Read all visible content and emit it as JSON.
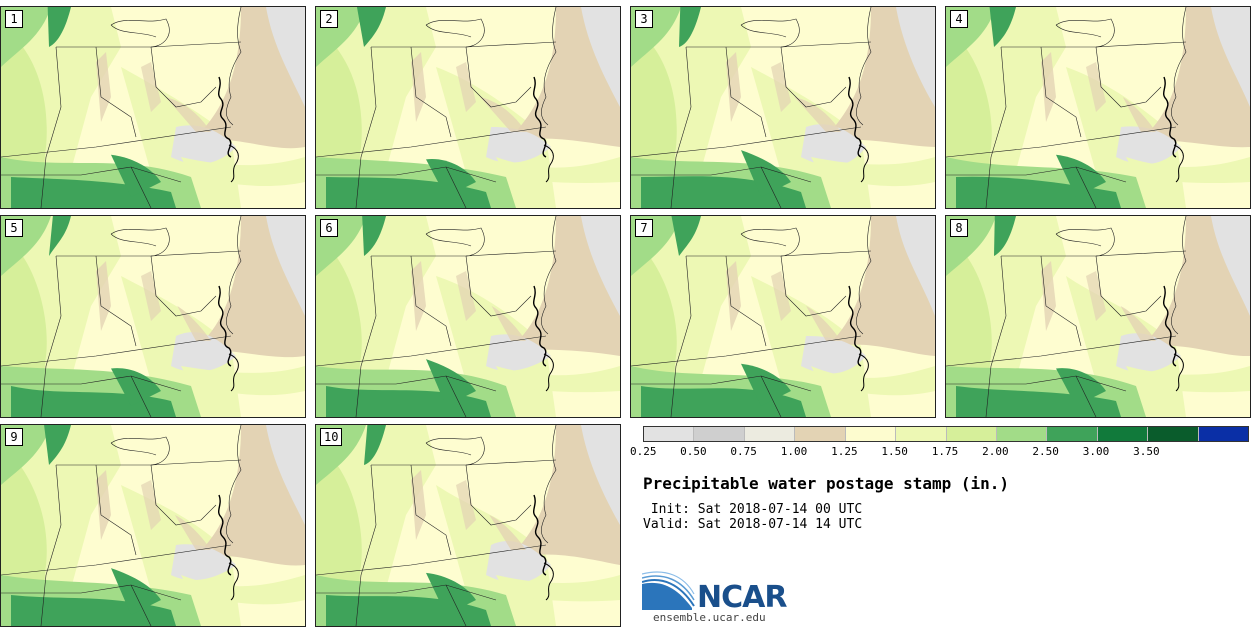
{
  "panels": [
    {
      "label": "1"
    },
    {
      "label": "2"
    },
    {
      "label": "3"
    },
    {
      "label": "4"
    },
    {
      "label": "5"
    },
    {
      "label": "6"
    },
    {
      "label": "7"
    },
    {
      "label": "8"
    },
    {
      "label": "9"
    },
    {
      "label": "10"
    }
  ],
  "colorbar": {
    "ticks": [
      "0.25",
      "0.50",
      "0.75",
      "1.00",
      "1.25",
      "1.50",
      "1.75",
      "2.00",
      "2.50",
      "3.00",
      "3.50"
    ],
    "colors": [
      "#e2e2e2",
      "#cfcfcf",
      "#ecebe0",
      "#e3d3b4",
      "#fdfccf",
      "#edf8b4",
      "#d6ef9a",
      "#a2dc88",
      "#3fa35a",
      "#117a3b",
      "#0a5c2c",
      "#0a2fa6"
    ]
  },
  "title": "Precipitable water postage stamp (in.)",
  "init_line": " Init: Sat 2018-07-14 00 UTC",
  "valid_line": "Valid: Sat 2018-07-14 14 UTC",
  "logo": {
    "text": "NCAR",
    "url": "ensemble.ucar.edu"
  }
}
